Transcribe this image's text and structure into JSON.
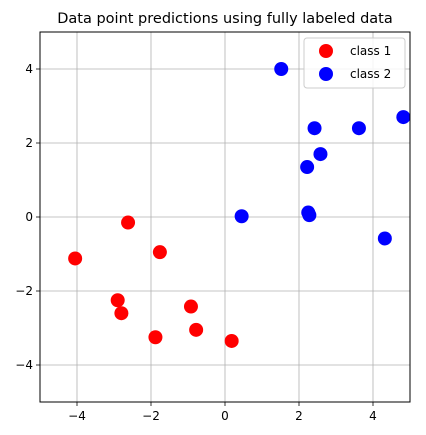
{
  "chart_data": {
    "type": "scatter",
    "title": "Data point predictions using fully labeled data",
    "xlabel": "",
    "ylabel": "",
    "xlim": [
      -5,
      5
    ],
    "ylim": [
      -5,
      5
    ],
    "xticks": [
      -4,
      -2,
      0,
      2,
      4
    ],
    "yticks": [
      -4,
      -2,
      0,
      2,
      4
    ],
    "grid": true,
    "legend_position": "top-right",
    "series": [
      {
        "name": "class 1",
        "color": "#ff0000",
        "points": [
          {
            "x": -4.05,
            "y": -1.12
          },
          {
            "x": -2.62,
            "y": -0.15
          },
          {
            "x": -1.76,
            "y": -0.95
          },
          {
            "x": -2.9,
            "y": -2.25
          },
          {
            "x": -2.8,
            "y": -2.6
          },
          {
            "x": -0.92,
            "y": -2.42
          },
          {
            "x": -0.78,
            "y": -3.05
          },
          {
            "x": -1.88,
            "y": -3.25
          },
          {
            "x": 0.18,
            "y": -3.35
          }
        ]
      },
      {
        "name": "class 2",
        "color": "#0000ff",
        "points": [
          {
            "x": 1.52,
            "y": 4.0
          },
          {
            "x": 2.42,
            "y": 2.4
          },
          {
            "x": 3.62,
            "y": 2.4
          },
          {
            "x": 4.82,
            "y": 2.7
          },
          {
            "x": 2.58,
            "y": 1.7
          },
          {
            "x": 2.22,
            "y": 1.35
          },
          {
            "x": 0.45,
            "y": 0.02
          },
          {
            "x": 2.25,
            "y": 0.12
          },
          {
            "x": 2.28,
            "y": 0.05
          },
          {
            "x": 4.32,
            "y": -0.58
          }
        ]
      }
    ]
  }
}
